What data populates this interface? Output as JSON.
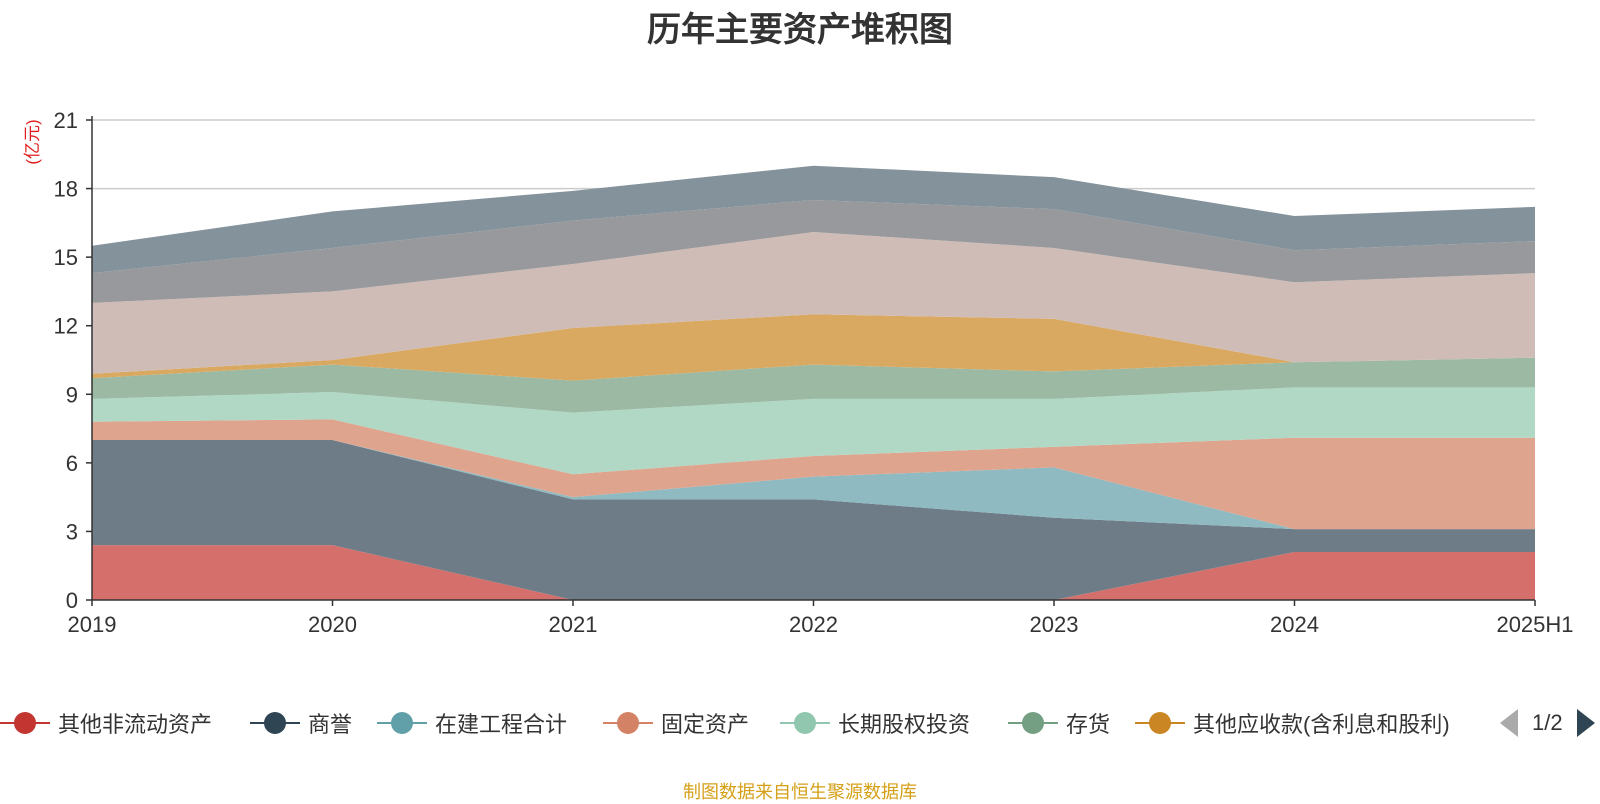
{
  "chart_data": {
    "type": "area",
    "stacked": true,
    "title": "历年主要资产堆积图",
    "ylabel": "(亿元)",
    "ylim": [
      0,
      21
    ],
    "yticks": [
      0,
      3,
      6,
      9,
      12,
      15,
      18,
      21
    ],
    "grid": true,
    "legend_position": "bottom",
    "x": [
      "2019",
      "2020",
      "2021",
      "2022",
      "2023",
      "2024",
      "2025H1"
    ],
    "series": [
      {
        "name": "其他非流动资产",
        "color": "#d46f6c",
        "values": [
          2.4,
          2.4,
          0.0,
          0.0,
          0.0,
          2.1,
          2.1
        ]
      },
      {
        "name": "商誉",
        "color": "#6e7c87",
        "values": [
          4.6,
          4.6,
          4.4,
          4.4,
          3.6,
          1.0,
          1.0
        ]
      },
      {
        "name": "在建工程合计",
        "color": "#8fbac1",
        "values": [
          0.0,
          0.0,
          0.1,
          1.0,
          2.2,
          0.0,
          0.0
        ]
      },
      {
        "name": "固定资产",
        "color": "#dfa48e",
        "values": [
          0.8,
          0.9,
          1.0,
          0.9,
          0.9,
          4.0,
          4.0
        ]
      },
      {
        "name": "长期股权投资",
        "color": "#b0d8c5",
        "values": [
          1.0,
          1.2,
          2.7,
          2.5,
          2.1,
          2.2,
          2.2
        ]
      },
      {
        "name": "存货",
        "color": "#9bb9a3",
        "values": [
          0.9,
          1.2,
          1.4,
          1.5,
          1.2,
          1.1,
          1.3
        ]
      },
      {
        "name": "其他应收款(含利息和股利)",
        "color": "#d9a962",
        "values": [
          0.2,
          0.2,
          2.3,
          2.2,
          2.3,
          0.0,
          0.0
        ]
      },
      {
        "values": [
          3.1,
          3.0,
          2.8,
          3.6,
          3.1,
          3.5,
          3.7
        ],
        "color": "#d0bcb6"
      },
      {
        "values": [
          1.3,
          1.9,
          1.9,
          1.4,
          1.7,
          1.4,
          1.4
        ],
        "color": "#98999c"
      },
      {
        "values": [
          1.2,
          1.6,
          1.3,
          1.5,
          1.4,
          1.5,
          1.5
        ],
        "color": "#84939b"
      }
    ]
  },
  "legend": {
    "items": [
      {
        "label": "其他非流动资产",
        "color": "#c23531"
      },
      {
        "label": "商誉",
        "color": "#2f4554"
      },
      {
        "label": "在建工程合计",
        "color": "#61a0a8"
      },
      {
        "label": "固定资产",
        "color": "#d48265"
      },
      {
        "label": "长期股权投资",
        "color": "#91c7ae"
      },
      {
        "label": "存货",
        "color": "#749f83"
      },
      {
        "label": "其他应收款(含利息和股利)",
        "color": "#ca8622"
      }
    ],
    "page_text": "1/2"
  },
  "source_note": "制图数据来自恒生聚源数据库"
}
